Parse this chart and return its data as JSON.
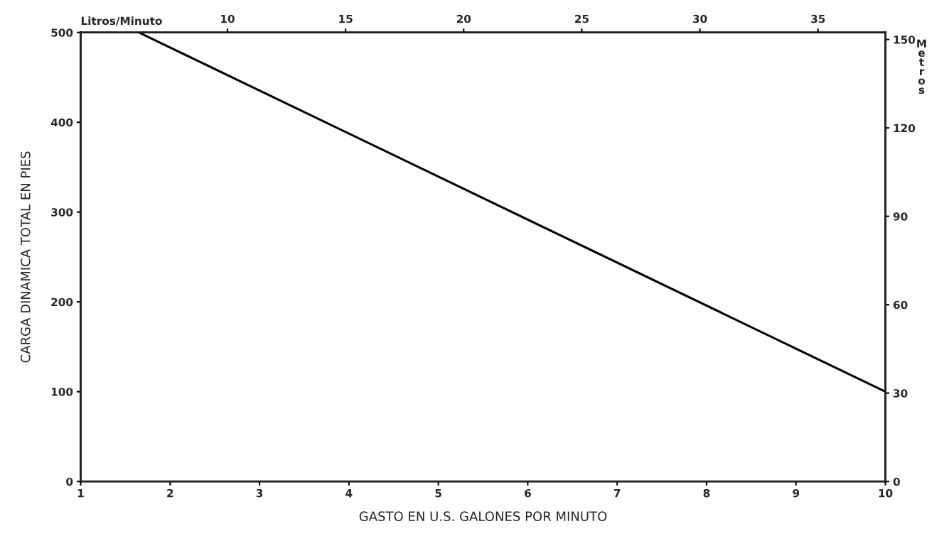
{
  "chart_data": {
    "type": "line",
    "xlabel": "GASTO EN U.S. GALONES POR MINUTO",
    "ylabel": "CARGA DINAMICA TOTAL EN PIES",
    "y2label": "Metros",
    "x2label": "Litros/Minuto",
    "x": [
      1.65,
      10
    ],
    "series": [
      {
        "color": "#000000",
        "values": [
          500,
          100
        ]
      }
    ],
    "xlim": [
      1,
      10
    ],
    "xticks": [
      1,
      2,
      3,
      4,
      5,
      6,
      7,
      8,
      9,
      10
    ],
    "ylim": [
      0,
      500
    ],
    "yticks": [
      0,
      100,
      200,
      300,
      400,
      500
    ],
    "y2lim": [
      0,
      152.4
    ],
    "y2ticks": [
      0,
      30,
      60,
      90,
      120,
      150
    ],
    "x2lim": [
      3.785,
      37.854
    ],
    "x2ticks": [
      10,
      15,
      20,
      25,
      30,
      35
    ],
    "grid": false,
    "legend": false,
    "marker": "none",
    "line_style": "solid"
  }
}
